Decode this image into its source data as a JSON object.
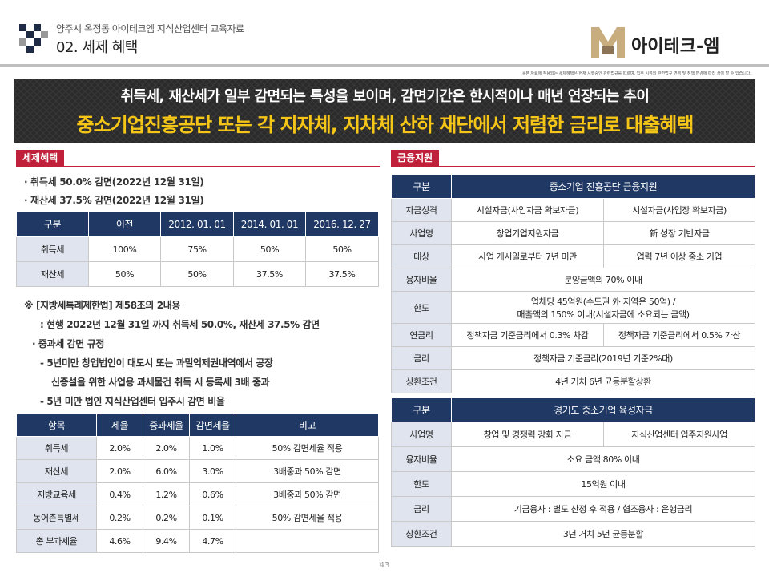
{
  "header": {
    "subtitle": "양주시 옥정동 아이테크엠 지식산업센터 교육자료",
    "title": "02. 세제 혜택",
    "brand": "아이테크-엠",
    "note": "※본 자료에 적용되는 세제혜택은 현재 시행중인 관련법규를 따르며, 입주 시점의 관련법규 변경 및 정책 변경에 따라 상이 할 수 있습니다."
  },
  "banner": {
    "line1": "취득세, 재산세가 일부 감면되는 특성을 보이며, 감면기간은 한시적이나 매년 연장되는 추이",
    "line2": "중소기업진흥공단 또는 각 지자체, 지차체 산하 재단에서 저렴한 금리로 대출혜택"
  },
  "tax": {
    "tag": "세제혜택",
    "bullet1": "· 취득세 50.0% 감면(2022년 12월 31일)",
    "bullet2": "· 재산세 37.5% 감면(2022년 12월 31일)",
    "table1": {
      "headers": [
        "구분",
        "이전",
        "2012. 01. 01",
        "2014. 01. 01",
        "2016. 12. 27"
      ],
      "rows": [
        [
          "취득세",
          "100%",
          "75%",
          "50%",
          "50%"
        ],
        [
          "재산세",
          "50%",
          "50%",
          "37.5%",
          "37.5%"
        ]
      ]
    },
    "notes": [
      "※ [지방세특례제한법] 제58조의 2내용",
      ": 현행 2022년 12월 31일 까지 취득세 50.0%, 재산세 37.5% 감면",
      "· 중과세 감면 규정",
      "- 5년미만 창업법인이 대도시 또는 과밀억제권내역에서 공장",
      "신증설을 위한 사업용 과세물건 취득 시 등록세 3배 중과",
      "- 5년 미만 법인 지식산업센터 입주시 감면 비율"
    ],
    "table2": {
      "headers": [
        "항목",
        "세율",
        "증과세율",
        "감면세율",
        "비고"
      ],
      "rows": [
        [
          "취득세",
          "2.0%",
          "2.0%",
          "1.0%",
          "50% 감면세율 적용"
        ],
        [
          "재산세",
          "2.0%",
          "6.0%",
          "3.0%",
          "3배중과 50% 감면"
        ],
        [
          "지방교육세",
          "0.4%",
          "1.2%",
          "0.6%",
          "3배중과 50% 감면"
        ],
        [
          "농어촌특별세",
          "0.2%",
          "0.2%",
          "0.1%",
          "50% 감면세율 적용"
        ],
        [
          "총 부과세율",
          "4.6%",
          "9.4%",
          "4.7%",
          ""
        ]
      ]
    }
  },
  "finance": {
    "tag": "금융지원",
    "table1": {
      "header_label": "구분",
      "header_title": "중소기업 진흥공단 금융지원",
      "rows": [
        {
          "label": "자금성격",
          "c1": "시설자금(사업자금 확보자금)",
          "c2": "시설자금(사업장 확보자금)"
        },
        {
          "label": "사업명",
          "c1": "창업기업지원자금",
          "c2": "新 성장 기반자금"
        },
        {
          "label": "대상",
          "c1": "사업 개시일로부터 7년 미만",
          "c2": "업력 7년 이상 중소 기업"
        },
        {
          "label": "융자비율",
          "span": "분양금액의 70% 이내"
        },
        {
          "label": "한도",
          "span1": "업체당 45억원(수도권 外 지역은 50억) /",
          "span2": "매출액의 150% 이내(시설자금에 소요되는 금액)"
        },
        {
          "label": "연금리",
          "c1": "정책자금 기준금리에서 0.3% 차감",
          "c2": "정책자금 기준금리에서 0.5% 가산"
        },
        {
          "label": "금리",
          "span": "정책자금 기준금리(2019년 기준2%대)"
        },
        {
          "label": "상환조건",
          "span": "4년 거치 6년 균등분할상환"
        }
      ]
    },
    "table2": {
      "header_label": "구분",
      "header_title": "경기도 중소기업 육성자금",
      "rows": [
        {
          "label": "사업명",
          "c1": "창업 및 경쟁력 강화 자금",
          "c2": "지식산업센터 입주지원사업"
        },
        {
          "label": "융자비율",
          "span": "소요 금액 80% 이내"
        },
        {
          "label": "한도",
          "span": "15억원 이내"
        },
        {
          "label": "금리",
          "span": "기금융자 : 별도 산정 후 적용 / 협조융자 : 은행금리"
        },
        {
          "label": "상환조건",
          "span": "3년 거치 5년 균등분할"
        }
      ]
    }
  },
  "page_number": "43",
  "colors": {
    "navy": "#1f3864",
    "red_tag": "#c0203a",
    "banner_bg": "#2b2b2b",
    "banner_yellow": "#f5c518",
    "label_bg": "#dfe4ee"
  }
}
